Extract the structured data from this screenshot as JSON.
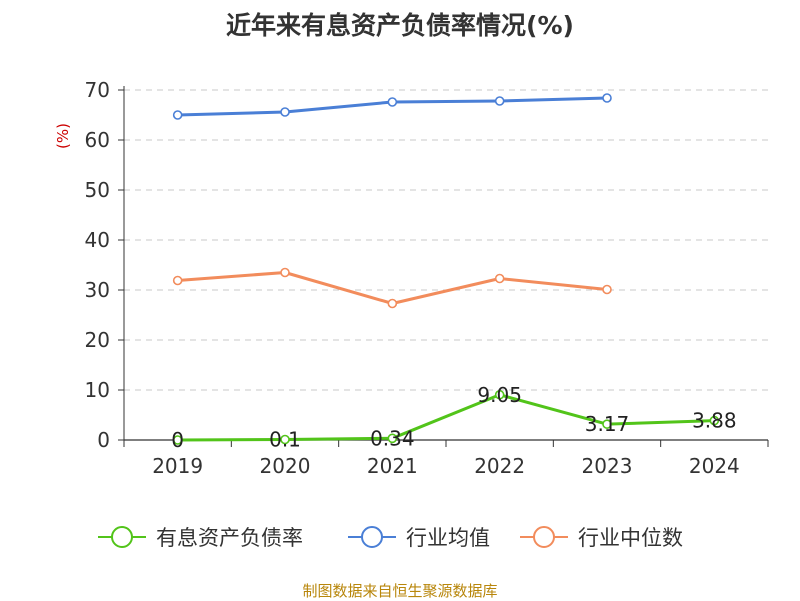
{
  "chart_data": {
    "type": "line",
    "title": "近年来有息资产负债率情况(%)",
    "unit_label": "(%)",
    "source": "制图数据来自恒生聚源数据库",
    "categories": [
      "2019",
      "2020",
      "2021",
      "2022",
      "2023",
      "2024"
    ],
    "yticks": [
      "0",
      "10",
      "20",
      "30",
      "40",
      "50",
      "60",
      "70"
    ],
    "ylim": [
      0,
      70
    ],
    "grid": true,
    "legend_position": "bottom",
    "series": [
      {
        "name": "有息资产负债率",
        "color": "#52c41a",
        "values": [
          0,
          0.1,
          0.34,
          9.05,
          3.17,
          3.88
        ],
        "labels": [
          "0",
          "0.1",
          "0.34",
          "9.05",
          "3.17",
          "3.88"
        ]
      },
      {
        "name": "行业均值",
        "color": "#4a7fd6",
        "values": [
          65.0,
          65.6,
          67.6,
          67.8,
          68.4,
          null
        ]
      },
      {
        "name": "行业中位数",
        "color": "#f28c5c",
        "values": [
          31.9,
          33.5,
          27.3,
          32.3,
          30.1,
          null
        ]
      }
    ]
  }
}
